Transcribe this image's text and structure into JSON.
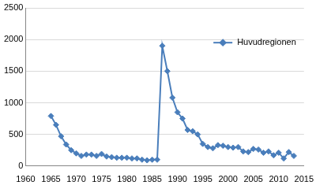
{
  "chart_data": {
    "type": "line",
    "x": [
      1965,
      1966,
      1967,
      1968,
      1969,
      1970,
      1971,
      1972,
      1973,
      1974,
      1975,
      1976,
      1977,
      1978,
      1979,
      1980,
      1981,
      1982,
      1983,
      1984,
      1985,
      1986,
      1987,
      1988,
      1989,
      1990,
      1991,
      1992,
      1993,
      1994,
      1995,
      1996,
      1997,
      1998,
      1999,
      2000,
      2001,
      2002,
      2003,
      2004,
      2005,
      2006,
      2007,
      2008,
      2009,
      2010,
      2011,
      2012,
      2013
    ],
    "series": [
      {
        "name": "Huvudregionen",
        "color": "#4a7ebb",
        "marker": "diamond",
        "values": [
          790,
          650,
          470,
          340,
          250,
          200,
          160,
          180,
          180,
          160,
          190,
          150,
          140,
          130,
          130,
          130,
          120,
          120,
          100,
          90,
          100,
          100,
          1900,
          1500,
          1080,
          850,
          750,
          570,
          550,
          500,
          350,
          300,
          280,
          330,
          320,
          300,
          290,
          300,
          230,
          220,
          270,
          260,
          210,
          230,
          170,
          210,
          120,
          220,
          160
        ]
      }
    ],
    "xlim": [
      1960,
      2015
    ],
    "xticks": [
      1960,
      1965,
      1970,
      1975,
      1980,
      1985,
      1990,
      1995,
      2000,
      2005,
      2010,
      2015
    ],
    "ylim": [
      0,
      2500
    ],
    "yticks": [
      0,
      500,
      1000,
      1500,
      2000,
      2500
    ],
    "grid": true,
    "legend": "upper right"
  }
}
